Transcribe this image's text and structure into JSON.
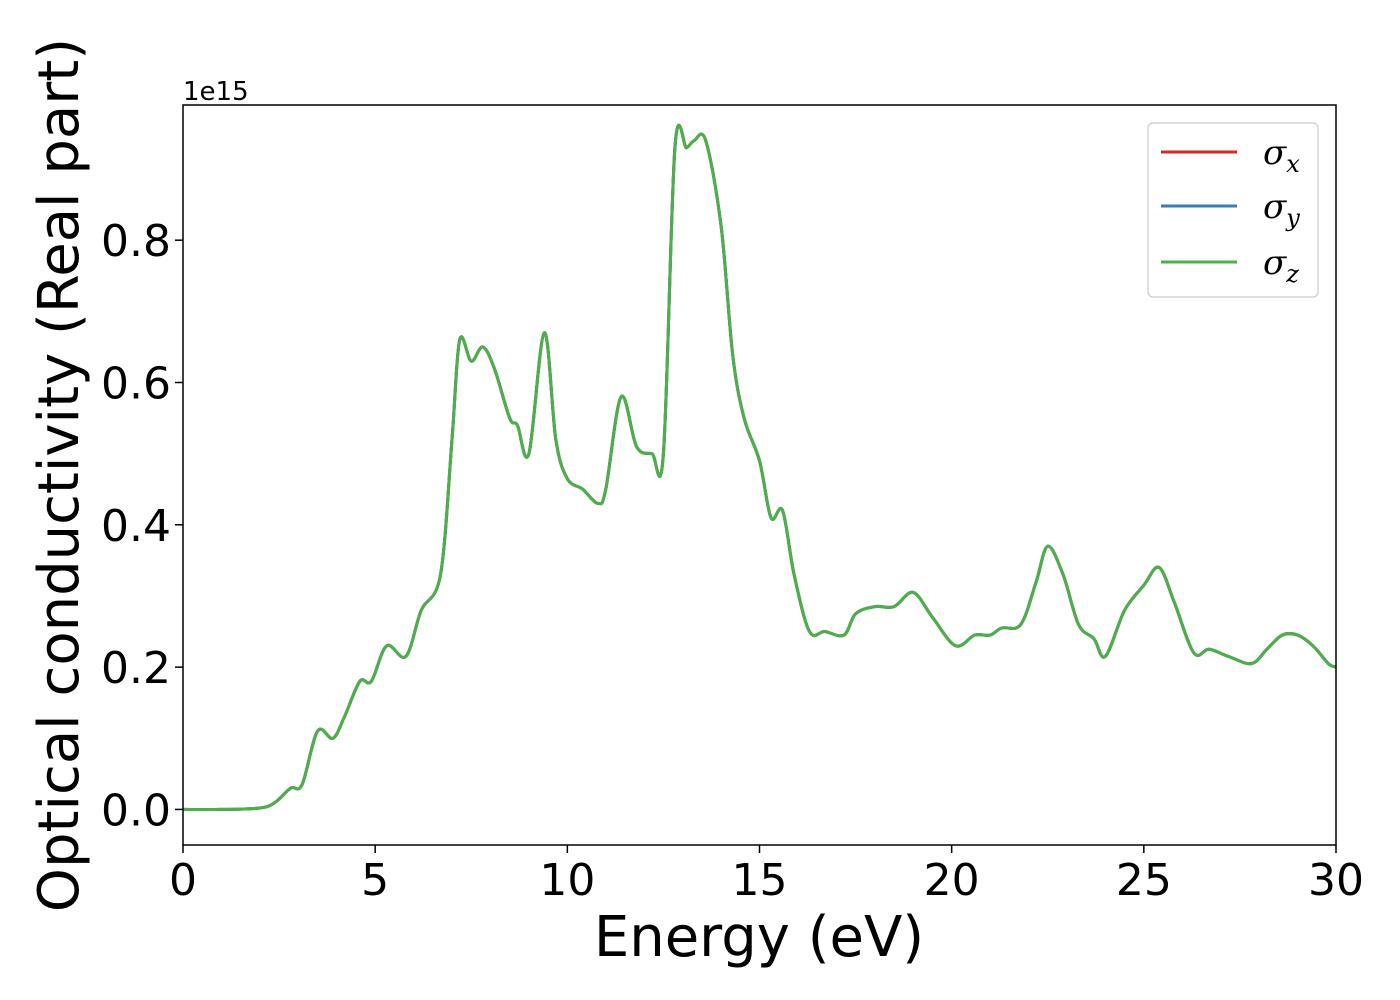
{
  "chart_data": {
    "type": "line",
    "xlabel": "Energy (eV)",
    "ylabel": "Optical conductivity (Real part)",
    "y_offset_text": "1e15",
    "y_scale_factor": 1000000000000000.0,
    "xlim": [
      0,
      30
    ],
    "ylim": [
      -0.05,
      0.99
    ],
    "x_ticks": [
      0,
      5,
      10,
      15,
      20,
      25,
      30
    ],
    "x_tick_labels": [
      "0",
      "5",
      "10",
      "15",
      "20",
      "25",
      "30"
    ],
    "y_ticks": [
      0.0,
      0.2,
      0.4,
      0.6,
      0.8
    ],
    "y_tick_labels": [
      "0.0",
      "0.2",
      "0.4",
      "0.6",
      "0.8"
    ],
    "grid": false,
    "legend_position": "top-right",
    "x": [
      0,
      1,
      2,
      2.4,
      2.8,
      3.1,
      3.5,
      3.9,
      4.2,
      4.6,
      4.9,
      5.3,
      5.8,
      6.2,
      6.7,
      7.0,
      7.2,
      7.5,
      7.8,
      8.1,
      8.5,
      8.7,
      9.0,
      9.4,
      9.7,
      10.0,
      10.4,
      10.8,
      11.0,
      11.4,
      11.8,
      12.2,
      12.5,
      12.8,
      13.1,
      13.3,
      13.6,
      14.0,
      14.3,
      14.6,
      15.0,
      15.3,
      15.6,
      15.9,
      16.3,
      16.7,
      17.2,
      17.5,
      18.0,
      18.5,
      19.0,
      19.5,
      20.1,
      20.6,
      21.0,
      21.3,
      21.8,
      22.2,
      22.5,
      22.9,
      23.3,
      23.7,
      24.0,
      24.5,
      25.0,
      25.4,
      25.8,
      26.3,
      26.7,
      27.2,
      27.8,
      28.2,
      28.6,
      29.0,
      29.4,
      29.8,
      30.0
    ],
    "series": [
      {
        "name": "σx",
        "label_base": "σ",
        "label_sub": "x",
        "color": "#d62728",
        "values": [
          0.0,
          0.0,
          0.002,
          0.01,
          0.03,
          0.035,
          0.11,
          0.1,
          0.13,
          0.18,
          0.18,
          0.23,
          0.215,
          0.28,
          0.33,
          0.52,
          0.66,
          0.63,
          0.65,
          0.62,
          0.55,
          0.54,
          0.5,
          0.67,
          0.52,
          0.465,
          0.45,
          0.43,
          0.45,
          0.58,
          0.51,
          0.5,
          0.5,
          0.93,
          0.93,
          0.94,
          0.94,
          0.82,
          0.64,
          0.55,
          0.49,
          0.41,
          0.42,
          0.33,
          0.25,
          0.25,
          0.245,
          0.275,
          0.285,
          0.285,
          0.305,
          0.27,
          0.23,
          0.245,
          0.245,
          0.255,
          0.26,
          0.32,
          0.37,
          0.33,
          0.26,
          0.24,
          0.215,
          0.28,
          0.315,
          0.34,
          0.29,
          0.22,
          0.225,
          0.215,
          0.205,
          0.225,
          0.245,
          0.245,
          0.23,
          0.205,
          0.2
        ]
      },
      {
        "name": "σy",
        "label_base": "σ",
        "label_sub": "y",
        "color": "#377eb8",
        "values": [
          0.0,
          0.0,
          0.002,
          0.01,
          0.03,
          0.035,
          0.11,
          0.1,
          0.13,
          0.18,
          0.18,
          0.23,
          0.215,
          0.28,
          0.33,
          0.52,
          0.66,
          0.63,
          0.65,
          0.62,
          0.55,
          0.54,
          0.5,
          0.67,
          0.52,
          0.465,
          0.45,
          0.43,
          0.45,
          0.58,
          0.51,
          0.5,
          0.5,
          0.93,
          0.93,
          0.94,
          0.94,
          0.82,
          0.64,
          0.55,
          0.49,
          0.41,
          0.42,
          0.33,
          0.25,
          0.25,
          0.245,
          0.275,
          0.285,
          0.285,
          0.305,
          0.27,
          0.23,
          0.245,
          0.245,
          0.255,
          0.26,
          0.32,
          0.37,
          0.33,
          0.26,
          0.24,
          0.215,
          0.28,
          0.315,
          0.34,
          0.29,
          0.22,
          0.225,
          0.215,
          0.205,
          0.225,
          0.245,
          0.245,
          0.23,
          0.205,
          0.2
        ]
      },
      {
        "name": "σz",
        "label_base": "σ",
        "label_sub": "z",
        "color": "#4daf4a",
        "values": [
          0.0,
          0.0,
          0.002,
          0.01,
          0.03,
          0.035,
          0.11,
          0.1,
          0.13,
          0.18,
          0.18,
          0.23,
          0.215,
          0.28,
          0.33,
          0.52,
          0.66,
          0.63,
          0.65,
          0.62,
          0.55,
          0.54,
          0.5,
          0.67,
          0.52,
          0.465,
          0.45,
          0.43,
          0.45,
          0.58,
          0.51,
          0.5,
          0.5,
          0.93,
          0.93,
          0.94,
          0.94,
          0.82,
          0.64,
          0.55,
          0.49,
          0.41,
          0.42,
          0.33,
          0.25,
          0.25,
          0.245,
          0.275,
          0.285,
          0.285,
          0.305,
          0.27,
          0.23,
          0.245,
          0.245,
          0.255,
          0.26,
          0.32,
          0.37,
          0.33,
          0.26,
          0.24,
          0.215,
          0.28,
          0.315,
          0.34,
          0.29,
          0.22,
          0.225,
          0.215,
          0.205,
          0.225,
          0.245,
          0.245,
          0.23,
          0.205,
          0.2
        ]
      }
    ]
  }
}
